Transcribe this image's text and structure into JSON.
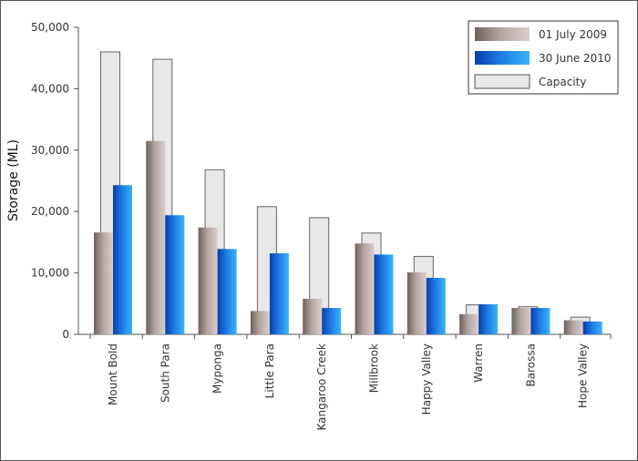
{
  "chart_data": {
    "type": "bar",
    "title": "",
    "xlabel": "",
    "ylabel": "Storage (ML)",
    "ylim": [
      0,
      50000
    ],
    "yticks": [
      0,
      10000,
      20000,
      30000,
      40000,
      50000
    ],
    "ytick_labels": [
      "0",
      "10,000",
      "20,000",
      "30,000",
      "40,000",
      "50,000"
    ],
    "grid": false,
    "legend_position": "top-right",
    "categories": [
      "Mount Bold",
      "South Para",
      "Myponga",
      "Little Para",
      "Kangaroo Creek",
      "Millbrook",
      "Happy Valley",
      "Warren",
      "Barossa",
      "Hope Valley"
    ],
    "capacity": {
      "name": "Capacity",
      "color": "#e8e8e8",
      "values": [
        46000,
        44800,
        26800,
        20800,
        19000,
        16500,
        12700,
        4800,
        4500,
        2800
      ]
    },
    "series": [
      {
        "name": "01 July 2009",
        "color": "#a08a86",
        "values": [
          16600,
          31500,
          17400,
          3800,
          5800,
          14800,
          10100,
          3300,
          4300,
          2300
        ]
      },
      {
        "name": "30 June 2010",
        "color": "#1a6fd8",
        "values": [
          24300,
          19400,
          13900,
          13200,
          4300,
          13000,
          9200,
          4900,
          4300,
          2100
        ]
      }
    ]
  }
}
